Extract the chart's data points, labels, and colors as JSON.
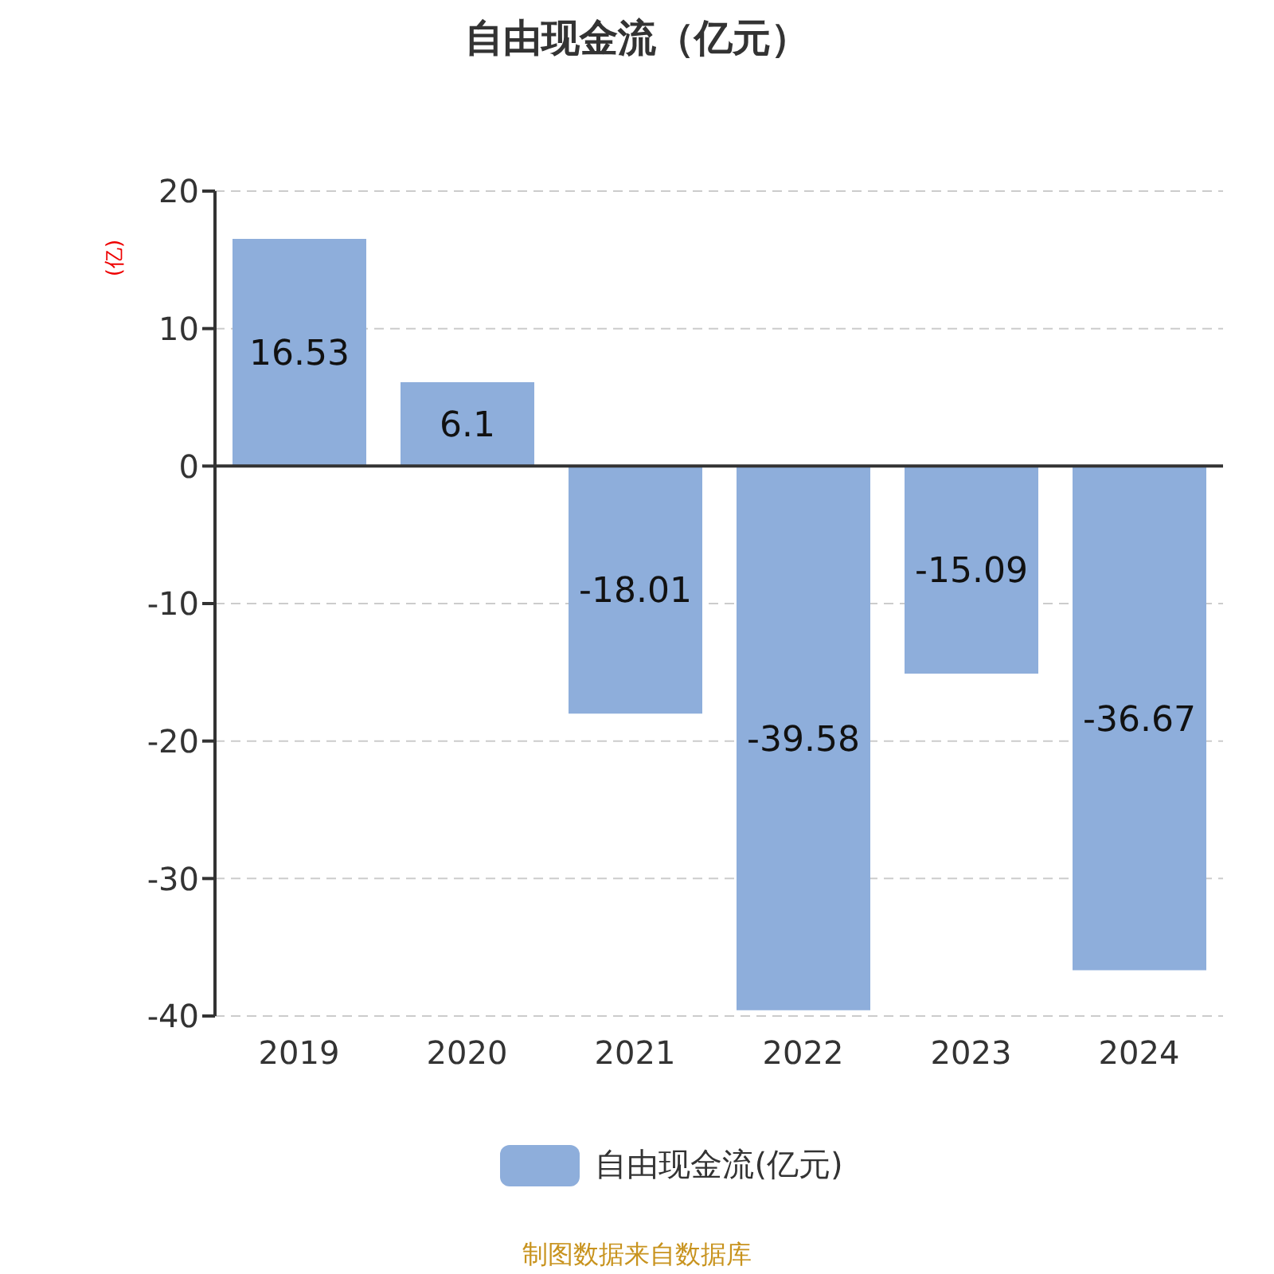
{
  "chart_data": {
    "type": "bar",
    "title": "自由现金流（亿元）",
    "ylabel": "(亿)",
    "categories": [
      "2019",
      "2020",
      "2021",
      "2022",
      "2023",
      "2024"
    ],
    "series": [
      {
        "name": "自由现金流(亿元)",
        "color": "#8eaedb",
        "values": [
          16.53,
          6.1,
          -18.01,
          -39.58,
          -15.09,
          -36.67
        ]
      }
    ],
    "ylim": [
      -40,
      20
    ],
    "yticks": [
      -40,
      -30,
      -20,
      -10,
      0,
      10,
      20
    ],
    "grid": "y",
    "legend": "bottom",
    "data_labels": true,
    "annotations": [
      "制图数据来自数据库"
    ]
  }
}
